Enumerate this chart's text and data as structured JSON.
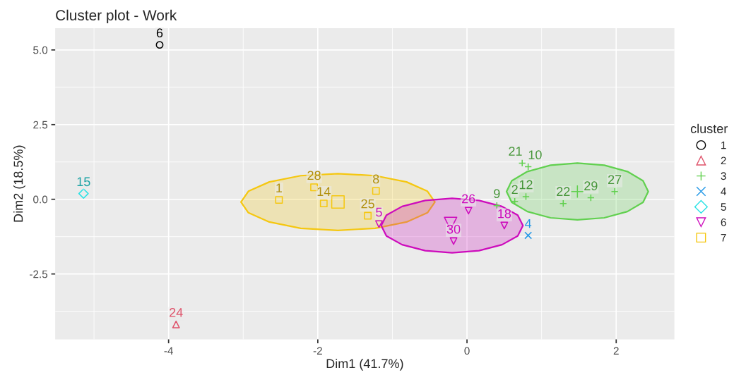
{
  "chart_data": {
    "type": "scatter",
    "title": "Cluster plot - Work",
    "xlabel": "Dim1 (41.7%)",
    "ylabel": "Dim2 (18.5%)",
    "legend_title": "cluster",
    "xlim": [
      -5.52,
      2.78
    ],
    "ylim": [
      -4.69,
      5.73
    ],
    "xticks": [
      -4,
      -2,
      0,
      2
    ],
    "yticks": [
      {
        "value": 5,
        "label": "5.0"
      },
      {
        "value": 2.5,
        "label": "2.5"
      },
      {
        "value": 0,
        "label": "0.0"
      },
      {
        "value": -2.5,
        "label": "-2.5"
      }
    ],
    "grid": true,
    "legend": "right",
    "series": [
      {
        "type": "area",
        "color": "#F5C710",
        "x": [
          -0.43,
          -0.53,
          -0.81,
          -1.23,
          -1.73,
          -2.23,
          -2.65,
          -2.93,
          -3.03,
          -2.93,
          -2.65,
          -2.23,
          -1.73,
          -1.23,
          -0.81,
          -0.53,
          -0.43
        ],
        "values": [
          -0.09,
          0.27,
          0.58,
          0.79,
          0.86,
          0.79,
          0.58,
          0.27,
          -0.09,
          -0.45,
          -0.76,
          -0.97,
          -1.04,
          -0.97,
          -0.76,
          -0.45,
          -0.09
        ]
      },
      {
        "type": "area",
        "color": "#CD0BBC",
        "x": [
          0.75,
          0.68,
          0.47,
          0.16,
          -0.2,
          -0.56,
          -0.87,
          -1.08,
          -1.15,
          -1.08,
          -0.87,
          -0.56,
          -0.2,
          0.16,
          0.47,
          0.68,
          0.75
        ],
        "values": [
          -0.88,
          -0.53,
          -0.24,
          -0.04,
          0.03,
          -0.04,
          -0.24,
          -0.53,
          -0.88,
          -1.23,
          -1.52,
          -1.72,
          -1.79,
          -1.72,
          -1.52,
          -1.23,
          -0.88
        ]
      },
      {
        "type": "area",
        "color": "#61D04F",
        "x": [
          2.43,
          2.36,
          2.15,
          1.84,
          1.48,
          1.12,
          0.81,
          0.6,
          0.53,
          0.6,
          0.81,
          1.12,
          1.48,
          1.84,
          2.15,
          2.36,
          2.43
        ],
        "values": [
          0.26,
          0.62,
          0.93,
          1.14,
          1.21,
          1.14,
          0.93,
          0.62,
          0.26,
          -0.1,
          -0.41,
          -0.62,
          -0.69,
          -0.62,
          -0.41,
          -0.1,
          0.26
        ]
      },
      {
        "name": "1",
        "color": "#000000",
        "marker": "circle",
        "x": [
          -4.12
        ],
        "values": [
          5.17
        ]
      },
      {
        "name": "2",
        "color": "#DF536B",
        "marker": "triangle",
        "x": [
          -3.9
        ],
        "values": [
          -4.19
        ]
      },
      {
        "name": "3",
        "color": "#61D04F",
        "marker": "plus",
        "x": [
          0.74,
          0.82,
          0.4,
          0.64,
          0.79,
          1.29,
          1.66,
          1.98
        ],
        "values": [
          1.21,
          1.09,
          -0.21,
          -0.07,
          0.09,
          -0.14,
          0.05,
          0.26
        ]
      },
      {
        "name": "4",
        "color": "#2297E6",
        "marker": "cross",
        "x": [
          0.82
        ],
        "values": [
          -1.21
        ]
      },
      {
        "name": "5",
        "color": "#28E2E5",
        "marker": "diamond",
        "x": [
          -5.14
        ],
        "values": [
          0.19
        ]
      },
      {
        "name": "6",
        "color": "#CD0BBC",
        "marker": "triangle_down",
        "x": [
          -1.18,
          0.02,
          0.5,
          -0.18
        ],
        "values": [
          -0.83,
          -0.38,
          -0.88,
          -1.4
        ]
      },
      {
        "name": "7",
        "color": "#F5C710",
        "marker": "square",
        "x": [
          -2.52,
          -2.05,
          -1.92,
          -1.33,
          -1.22
        ],
        "values": [
          -0.02,
          0.4,
          -0.14,
          -0.55,
          0.28
        ]
      },
      {
        "type": "scatter",
        "color": "#61D04F",
        "marker": "plus",
        "x": [
          1.48
        ],
        "values": [
          0.26
        ]
      },
      {
        "type": "scatter",
        "color": "#CD0BBC",
        "marker": "triangle_down",
        "x": [
          -0.22
        ],
        "values": [
          -0.81
        ]
      },
      {
        "type": "scatter",
        "color": "#F5C710",
        "marker": "square",
        "x": [
          -1.73
        ],
        "values": [
          -0.09
        ]
      }
    ],
    "annotations": [
      {
        "text": "6",
        "x": -4.12,
        "y": 5.17
      },
      {
        "text": "24",
        "x": -3.9,
        "y": -4.19
      },
      {
        "text": "21",
        "x": 0.74,
        "y": 1.21
      },
      {
        "text": "10",
        "x": 0.82,
        "y": 1.09
      },
      {
        "text": "9",
        "x": 0.4,
        "y": -0.21
      },
      {
        "text": "2",
        "x": 0.64,
        "y": -0.07
      },
      {
        "text": "12",
        "x": 0.79,
        "y": 0.09
      },
      {
        "text": "22",
        "x": 1.29,
        "y": -0.14
      },
      {
        "text": "29",
        "x": 1.66,
        "y": 0.05
      },
      {
        "text": "27",
        "x": 1.98,
        "y": 0.26
      },
      {
        "text": "4",
        "x": 0.82,
        "y": -1.21
      },
      {
        "text": "15",
        "x": -5.14,
        "y": 0.19
      },
      {
        "text": "5",
        "x": -1.18,
        "y": -0.83
      },
      {
        "text": "26",
        "x": 0.02,
        "y": -0.38
      },
      {
        "text": "18",
        "x": 0.5,
        "y": -0.88
      },
      {
        "text": "30",
        "x": -0.18,
        "y": -1.4
      },
      {
        "text": "1",
        "x": -2.52,
        "y": -0.02
      },
      {
        "text": "28",
        "x": -2.05,
        "y": 0.4
      },
      {
        "text": "14",
        "x": -1.92,
        "y": -0.14
      },
      {
        "text": "25",
        "x": -1.33,
        "y": -0.55
      },
      {
        "text": "8",
        "x": -1.22,
        "y": 0.28
      }
    ]
  }
}
